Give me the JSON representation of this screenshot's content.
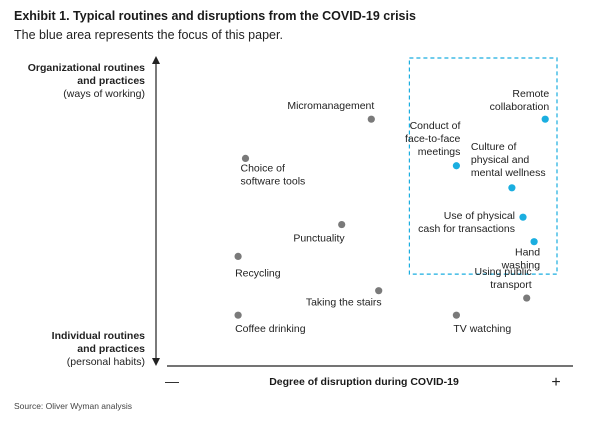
{
  "header": {
    "title": "Exhibit 1. Typical routines and disruptions from the COVID-19 crisis",
    "subtitle": "The blue area represents the focus of this paper."
  },
  "y_axis": {
    "top_line1": "Organizational routines",
    "top_line2": "and practices",
    "top_line3": "(ways of working)",
    "bottom_line1": "Individual routines",
    "bottom_line2": "and practices",
    "bottom_line3": "(personal habits)"
  },
  "footer": {
    "source": "Source: Oliver Wyman analysis"
  },
  "colors": {
    "focus": "#1aaee0",
    "other": "#7a7a7a",
    "axis": "#222222"
  },
  "chart_data": {
    "type": "scatter",
    "title": "Exhibit 1. Typical routines and disruptions from the COVID-19 crisis",
    "xlabel": "Degree of disruption during COVID-19",
    "x_min_label": "—",
    "x_max_label": "+",
    "ylabel_top": "Organizational routines and practices (ways of working)",
    "ylabel_bottom": "Individual routines and practices (personal habits)",
    "xlim": [
      0,
      100
    ],
    "ylim": [
      0,
      100
    ],
    "grid": false,
    "focus_area_note": "The blue area represents the focus of this paper.",
    "focus_area": {
      "x": [
        62,
        100
      ],
      "y": [
        33,
        100
      ]
    },
    "points": [
      {
        "label": [
          "Micromanagement"
        ],
        "x": 49,
        "y": 84,
        "focus": false,
        "anchor": "end",
        "dx": 3,
        "dy": -10
      },
      {
        "label": [
          "Choice of",
          "software tools"
        ],
        "x": 15,
        "y": 68,
        "focus": false,
        "anchor": "start",
        "dx": -5,
        "dy": 13
      },
      {
        "label": [
          "Punctuality"
        ],
        "x": 41,
        "y": 41,
        "focus": false,
        "anchor": "end",
        "dx": 3,
        "dy": 17
      },
      {
        "label": [
          "Recycling"
        ],
        "x": 13,
        "y": 28,
        "focus": false,
        "anchor": "start",
        "dx": -3,
        "dy": 20
      },
      {
        "label": [
          "Taking the stairs"
        ],
        "x": 51,
        "y": 14,
        "focus": false,
        "anchor": "end",
        "dx": 3,
        "dy": 15
      },
      {
        "label": [
          "Coffee drinking"
        ],
        "x": 13,
        "y": 4,
        "focus": false,
        "anchor": "start",
        "dx": -3,
        "dy": 17
      },
      {
        "label": [
          "TV watching"
        ],
        "x": 72,
        "y": 4,
        "focus": false,
        "anchor": "start",
        "dx": -3,
        "dy": 17
      },
      {
        "label": [
          "Using public",
          "transport"
        ],
        "x": 91,
        "y": 11,
        "focus": false,
        "anchor": "end",
        "dx": 5,
        "dy": -23
      },
      {
        "label": [
          "Conduct of",
          "face-to-face",
          "meetings"
        ],
        "x": 72,
        "y": 65,
        "focus": true,
        "anchor": "end",
        "dx": 4,
        "dy": -37
      },
      {
        "label": [
          "Remote",
          "collaboration"
        ],
        "x": 96,
        "y": 84,
        "focus": true,
        "anchor": "end",
        "dx": 4,
        "dy": -22
      },
      {
        "label": [
          "Culture of",
          "physical and",
          "mental wellness"
        ],
        "x": 87,
        "y": 56,
        "focus": true,
        "anchor": "start",
        "dx": -41,
        "dy": -38
      },
      {
        "label": [
          "Use of physical",
          "cash for transactions"
        ],
        "x": 90,
        "y": 44,
        "focus": true,
        "anchor": "end",
        "dx": -8,
        "dy": 2
      },
      {
        "label": [
          "Hand",
          "washing"
        ],
        "x": 93,
        "y": 34,
        "focus": true,
        "anchor": "end",
        "dx": 6,
        "dy": 14
      }
    ]
  }
}
